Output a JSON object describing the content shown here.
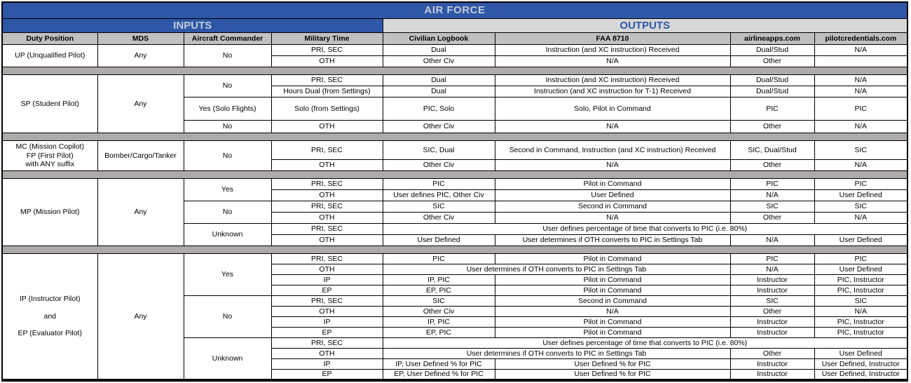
{
  "title": "AIR FORCE",
  "banners": {
    "inputs": "INPUTS",
    "outputs": "OUTPUTS"
  },
  "columns": [
    "Duty Position",
    "MDS",
    "Aircraft Commander",
    "Military Time",
    "Civilian Logbook",
    "FAA 8710",
    "airlineapps.com",
    "pilotcredentials.com"
  ],
  "colors": {
    "banner_blue": "#2e57a7",
    "banner_text_silver": "#c3cbd8",
    "outputs_bg": "#d7d7d7",
    "column_header_bg": "#c0c0c0",
    "separator_bg": "#aeaaaa",
    "border": "#000000"
  },
  "sections": [
    {
      "name": "unqualified-pilot",
      "rows": [
        {
          "cells": [
            {
              "t": "UP (Unqualified Pilot)",
              "rs": 2
            },
            {
              "t": "Any",
              "rs": 2
            },
            {
              "t": "No",
              "rs": 2
            },
            {
              "t": "PRI, SEC"
            },
            {
              "t": "Dual"
            },
            {
              "t": "Instruction (and XC instruction) Received"
            },
            {
              "t": "Dual/Stud"
            },
            {
              "t": "N/A"
            }
          ]
        },
        {
          "cells": [
            {
              "t": "OTH"
            },
            {
              "t": "Other Civ"
            },
            {
              "t": "N/A"
            },
            {
              "t": "Other"
            },
            {
              "t": ""
            }
          ]
        }
      ]
    },
    {
      "name": "student-pilot",
      "rows": [
        {
          "cells": [
            {
              "t": "SP (Student Pilot)",
              "rs": 4
            },
            {
              "t": "Any",
              "rs": 4
            },
            {
              "t": "No",
              "rs": 2
            },
            {
              "t": "PRI, SEC"
            },
            {
              "t": "Dual"
            },
            {
              "t": "Instruction (and XC instruction) Received"
            },
            {
              "t": "Dual/Stud"
            },
            {
              "t": "N/A"
            }
          ]
        },
        {
          "cells": [
            {
              "t": "Hours Dual (from Settings)"
            },
            {
              "t": "Dual"
            },
            {
              "t": "Instruction (and XC instruction for T-1) Received"
            },
            {
              "t": "Dual/Stud"
            },
            {
              "t": "N/A"
            }
          ]
        },
        {
          "h": 33,
          "cells": [
            {
              "t": "Yes (Solo Flights)"
            },
            {
              "t": "Solo (from Settings)"
            },
            {
              "t": "PIC, Solo"
            },
            {
              "t": "Solo, Pilot in Command"
            },
            {
              "t": "PIC"
            },
            {
              "t": "PIC"
            }
          ]
        },
        {
          "h": 18,
          "cells": [
            {
              "t": "No"
            },
            {
              "t": "OTH"
            },
            {
              "t": "Other Civ"
            },
            {
              "t": "N/A"
            },
            {
              "t": "Other"
            },
            {
              "t": "N/A"
            }
          ]
        }
      ]
    },
    {
      "name": "mission-copilot-first-pilot",
      "rows": [
        {
          "h": 27,
          "cells": [
            {
              "lines": [
                "MC (Mission Copilot)",
                "FP (First Pilot)",
                "with ANY suffix"
              ],
              "rs": 2
            },
            {
              "t": "Bomber/Cargo/Tanker",
              "rs": 2
            },
            {
              "t": "No",
              "rs": 2
            },
            {
              "t": "PRI, SEC"
            },
            {
              "t": "SIC, Dual"
            },
            {
              "t": "Second in Command, Instruction (and XC instruction) Received"
            },
            {
              "t": "SIC, Dual/Stud"
            },
            {
              "t": "SIC"
            }
          ]
        },
        {
          "cells": [
            {
              "t": "OTH"
            },
            {
              "t": "Other Civ"
            },
            {
              "t": "N/A"
            },
            {
              "t": "Other"
            },
            {
              "t": "N/A"
            }
          ]
        }
      ]
    },
    {
      "name": "mission-pilot",
      "rows": [
        {
          "cells": [
            {
              "t": "MP (Mission Pilot)",
              "rs": 6
            },
            {
              "t": "Any",
              "rs": 6
            },
            {
              "t": "Yes",
              "rs": 2
            },
            {
              "t": "PRI, SEC"
            },
            {
              "t": "PIC"
            },
            {
              "t": "Pilot in Command"
            },
            {
              "t": "PIC"
            },
            {
              "t": "PIC"
            }
          ]
        },
        {
          "cells": [
            {
              "t": "OTH"
            },
            {
              "t": "User defines PIC, Other Civ"
            },
            {
              "t": "User Defined"
            },
            {
              "t": "N/A"
            },
            {
              "t": "User Defined"
            }
          ]
        },
        {
          "cells": [
            {
              "t": "No",
              "rs": 2
            },
            {
              "t": "PRI, SEC"
            },
            {
              "t": "SIC"
            },
            {
              "t": "Second in Command"
            },
            {
              "t": "SIC"
            },
            {
              "t": "SIC"
            }
          ]
        },
        {
          "cells": [
            {
              "t": "OTH"
            },
            {
              "t": "Other Civ"
            },
            {
              "t": "N/A"
            },
            {
              "t": "Other"
            },
            {
              "t": "N/A"
            }
          ]
        },
        {
          "cells": [
            {
              "t": "Unknown",
              "rs": 2
            },
            {
              "t": "PRI, SEC"
            },
            {
              "t": "User defines percentage of time that converts to PIC (i.e. 80%)",
              "cs": 4
            }
          ]
        },
        {
          "cells": [
            {
              "t": "OTH"
            },
            {
              "t": "User Defined"
            },
            {
              "t": "User determines if OTH converts to PIC in Settings Tab"
            },
            {
              "t": "N/A"
            },
            {
              "t": "User Defined"
            }
          ]
        }
      ]
    },
    {
      "name": "instructor-evaluator-pilot",
      "rows": [
        {
          "h": 15,
          "cells": [
            {
              "lines": [
                "IP (Instructor Pilot)",
                "",
                "and",
                "",
                "EP (Evaluator Pilot)"
              ],
              "rs": 12
            },
            {
              "t": "Any",
              "rs": 12
            },
            {
              "t": "Yes",
              "rs": 4
            },
            {
              "t": "PRI, SEC"
            },
            {
              "t": "PIC"
            },
            {
              "t": "Pilot in Command"
            },
            {
              "t": "PIC"
            },
            {
              "t": "PIC"
            }
          ]
        },
        {
          "h": 15,
          "cells": [
            {
              "t": "OTH"
            },
            {
              "t": "User determines if OTH converts to PIC in Settings Tab",
              "cs": 2
            },
            {
              "t": "N/A"
            },
            {
              "t": "User Defined"
            }
          ]
        },
        {
          "h": 15,
          "cells": [
            {
              "t": "IP"
            },
            {
              "t": "IP, PIC"
            },
            {
              "t": "Pilot in Command"
            },
            {
              "t": "Instructor"
            },
            {
              "t": "PIC, Instructor"
            }
          ]
        },
        {
          "h": 15,
          "cells": [
            {
              "t": "EP"
            },
            {
              "t": "EP, PIC"
            },
            {
              "t": "Pilot in Command"
            },
            {
              "t": "Instructor"
            },
            {
              "t": "PIC, Instructor"
            }
          ]
        },
        {
          "h": 15,
          "cells": [
            {
              "t": "No",
              "rs": 4
            },
            {
              "t": "PRI, SEC"
            },
            {
              "t": "SIC"
            },
            {
              "t": "Second in Command"
            },
            {
              "t": "SIC"
            },
            {
              "t": "SIC"
            }
          ]
        },
        {
          "h": 15,
          "cells": [
            {
              "t": "OTH"
            },
            {
              "t": "Other Civ"
            },
            {
              "t": "N/A"
            },
            {
              "t": "Other"
            },
            {
              "t": "N/A"
            }
          ]
        },
        {
          "h": 15,
          "cells": [
            {
              "t": "IP"
            },
            {
              "t": "IP, PIC"
            },
            {
              "t": "Pilot in Command"
            },
            {
              "t": "Instructor"
            },
            {
              "t": "PIC, Instructor"
            }
          ]
        },
        {
          "h": 15,
          "cells": [
            {
              "t": "EP"
            },
            {
              "t": "EP, PIC"
            },
            {
              "t": "Pilot in Command"
            },
            {
              "t": "Instructor"
            },
            {
              "t": "PIC, Instructor"
            }
          ]
        },
        {
          "h": 15,
          "cells": [
            {
              "t": "Unknown",
              "rs": 4
            },
            {
              "t": "PRI, SEC"
            },
            {
              "t": "User defines percentage of time that converts to PIC (i.e. 80%)",
              "cs": 4
            }
          ]
        },
        {
          "h": 15,
          "cells": [
            {
              "t": "OTH"
            },
            {
              "t": "User determines if OTH converts to PIC in Settings Tab",
              "cs": 2
            },
            {
              "t": "Other"
            },
            {
              "t": "User Defined"
            }
          ]
        },
        {
          "h": 15,
          "cells": [
            {
              "t": "IP"
            },
            {
              "t": "IP, User Defined % for PIC"
            },
            {
              "t": "User Defined % for PIC"
            },
            {
              "t": "Instructor"
            },
            {
              "t": "User Defined, Instructor"
            }
          ]
        },
        {
          "h": 15,
          "cells": [
            {
              "t": "EP"
            },
            {
              "t": "EP, User Defined % for PIC"
            },
            {
              "t": "User Defined % for PIC"
            },
            {
              "t": "Instructor"
            },
            {
              "t": "User Defined, Instructor"
            }
          ]
        }
      ]
    }
  ]
}
